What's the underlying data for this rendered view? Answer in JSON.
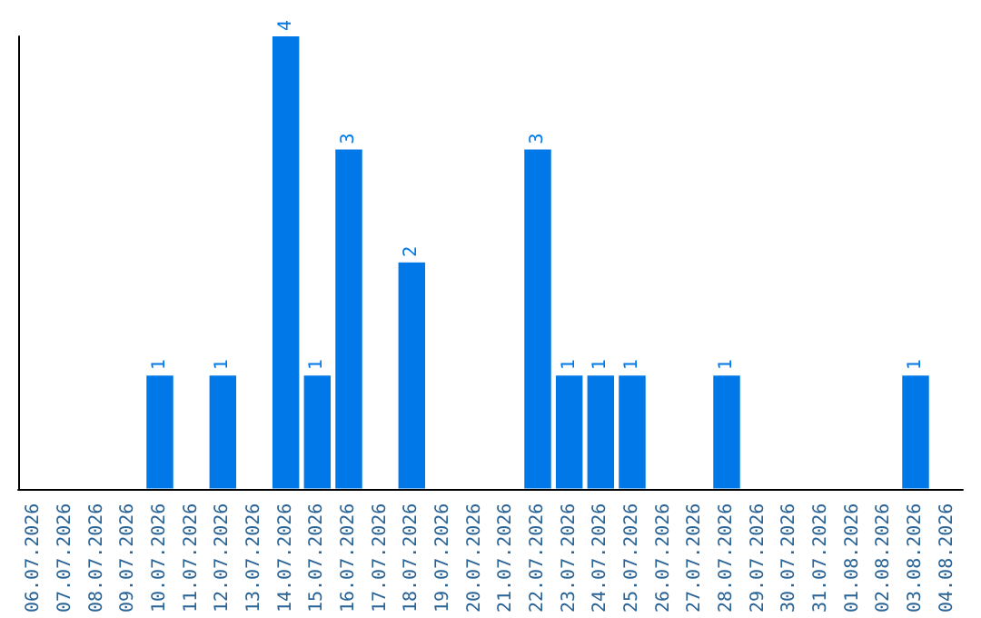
{
  "chart_data": {
    "type": "bar",
    "categories": [
      "06.07.2026",
      "07.07.2026",
      "08.07.2026",
      "09.07.2026",
      "10.07.2026",
      "11.07.2026",
      "12.07.2026",
      "13.07.2026",
      "14.07.2026",
      "15.07.2026",
      "16.07.2026",
      "17.07.2026",
      "18.07.2026",
      "19.07.2026",
      "20.07.2026",
      "21.07.2026",
      "22.07.2026",
      "23.07.2026",
      "24.07.2026",
      "25.07.2026",
      "26.07.2026",
      "27.07.2026",
      "28.07.2026",
      "29.07.2026",
      "30.07.2026",
      "31.07.2026",
      "01.08.2026",
      "02.08.2026",
      "03.08.2026",
      "04.08.2026"
    ],
    "values": [
      0,
      0,
      0,
      0,
      1,
      0,
      1,
      0,
      4,
      1,
      3,
      0,
      2,
      0,
      0,
      0,
      3,
      1,
      1,
      1,
      0,
      0,
      1,
      0,
      0,
      0,
      0,
      0,
      1,
      0
    ],
    "value_labels": [
      null,
      null,
      null,
      null,
      "1",
      null,
      "1",
      null,
      "4",
      "1",
      "3",
      null,
      "2",
      null,
      null,
      null,
      "3",
      "1",
      "1",
      "1",
      null,
      null,
      "1",
      null,
      null,
      null,
      null,
      null,
      "1",
      null
    ],
    "color": "#0078e7",
    "grid": false
  }
}
